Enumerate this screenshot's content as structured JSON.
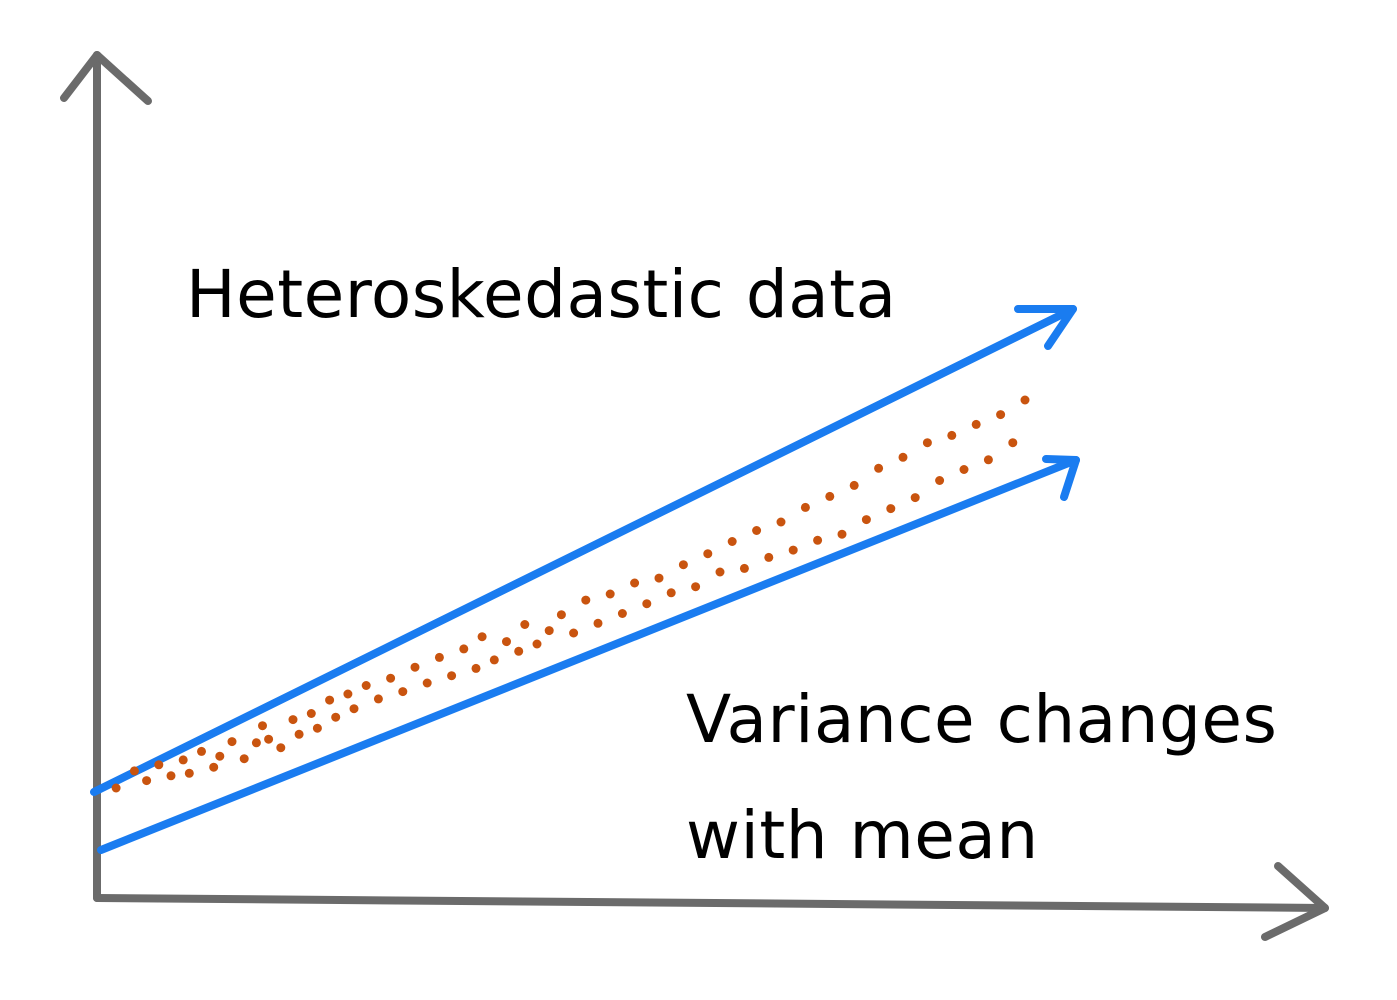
{
  "title": "Heteroskedastic data",
  "caption": {
    "line1": "Variance changes",
    "line2": "with mean"
  },
  "colors": {
    "axis": "#6b6b6b",
    "bounds": "#1a7cf0",
    "points": "#c9540f",
    "text": "#000000"
  },
  "chart_data": {
    "type": "scatter",
    "grid": false,
    "xlabel": "",
    "ylabel": "",
    "series": [
      {
        "x": [
          0.5,
          2,
          3,
          4,
          5,
          6,
          6.5,
          7.5,
          8.5,
          9,
          10,
          11,
          12,
          12.5,
          13,
          14,
          15,
          15.5,
          16.5,
          17,
          18,
          18.5,
          19.5,
          20,
          21,
          22,
          23,
          24,
          25,
          26,
          27,
          28,
          29,
          30,
          30.5,
          31.5,
          32.5,
          33.5,
          34,
          35,
          36,
          37,
          38,
          39,
          40,
          41,
          42,
          43,
          44,
          45,
          46,
          47,
          48,
          49,
          50,
          51,
          52,
          53,
          54,
          55,
          56,
          57,
          58,
          59,
          60,
          61,
          62,
          63,
          64,
          65,
          66,
          67,
          68,
          69,
          70,
          71,
          72,
          73,
          74,
          75
        ],
        "y": [
          3.2,
          4.6,
          3.8,
          5.1,
          4.2,
          5.5,
          4.4,
          6.2,
          4.9,
          5.8,
          7.0,
          5.6,
          6.9,
          8.3,
          7.2,
          6.5,
          8.8,
          7.6,
          9.3,
          8.1,
          10.4,
          9.0,
          10.9,
          9.7,
          11.6,
          10.5,
          12.2,
          11.1,
          13.1,
          11.8,
          13.9,
          12.4,
          14.6,
          13.0,
          15.6,
          13.7,
          15.2,
          14.4,
          16.6,
          15.0,
          16.1,
          17.4,
          15.9,
          18.6,
          16.7,
          19.1,
          17.5,
          20.0,
          18.3,
          20.4,
          19.2,
          21.5,
          19.7,
          22.4,
          20.9,
          23.4,
          21.2,
          24.3,
          22.1,
          25.0,
          22.7,
          26.2,
          23.5,
          27.1,
          24.0,
          28.0,
          25.2,
          29.4,
          26.1,
          30.3,
          27.0,
          31.5,
          28.4,
          32.1,
          29.3,
          33.0,
          30.1,
          33.8,
          31.5,
          35.0
        ]
      }
    ]
  }
}
